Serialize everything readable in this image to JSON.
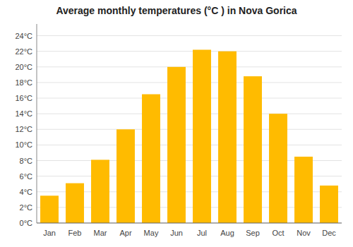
{
  "chart_data": {
    "type": "bar",
    "title": "Average monthly temperatures (°C ) in Nova Gorica",
    "categories": [
      "Jan",
      "Feb",
      "Mar",
      "Apr",
      "May",
      "Jun",
      "Jul",
      "Aug",
      "Sep",
      "Oct",
      "Nov",
      "Dec"
    ],
    "values": [
      3.5,
      5.1,
      8.1,
      12.0,
      16.5,
      20.0,
      22.2,
      22.0,
      18.8,
      14.0,
      8.5,
      4.8
    ],
    "color": "#FFBB00",
    "ylim": [
      0,
      25.5
    ],
    "yticks": [
      {
        "value": 0,
        "label": "0°C"
      },
      {
        "value": 2,
        "label": "2°C"
      },
      {
        "value": 4,
        "label": "4°C"
      },
      {
        "value": 6,
        "label": "6°C"
      },
      {
        "value": 8,
        "label": "8°C"
      },
      {
        "value": 10,
        "label": "10°C"
      },
      {
        "value": 12,
        "label": "12°C"
      },
      {
        "value": 14,
        "label": "14°C"
      },
      {
        "value": 16,
        "label": "16°C"
      },
      {
        "value": 18,
        "label": "18°C"
      },
      {
        "value": 20,
        "label": "20°C"
      },
      {
        "value": 22,
        "label": "22°C"
      },
      {
        "value": 24,
        "label": "24°C"
      }
    ],
    "grid": true
  }
}
